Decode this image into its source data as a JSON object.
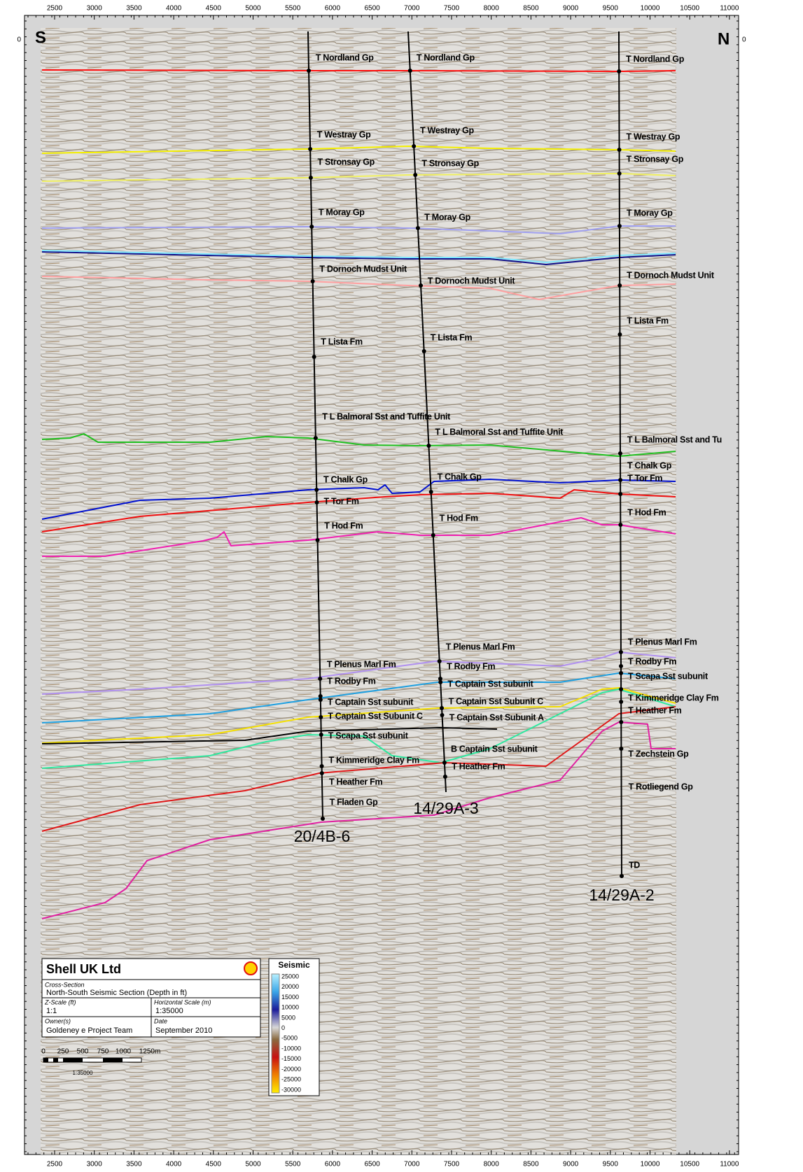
{
  "axis": {
    "ticks": [
      2500,
      3000,
      3500,
      4000,
      4500,
      5000,
      5500,
      6000,
      6500,
      7000,
      7500,
      8000,
      8500,
      9000,
      9500,
      10000,
      10500,
      11000
    ],
    "left": "0",
    "right": "0"
  },
  "header": {
    "south": "S",
    "north": "N"
  },
  "wells": [
    {
      "name": "20/4B-6",
      "tops": [
        "T Nordland Gp",
        "T Westray Gp",
        "T Stronsay Gp",
        "T Moray Gp",
        "T Dornoch Mudst Unit",
        "T Lista Fm",
        "T L Balmoral Sst and Tuffite Unit",
        "T Chalk Gp",
        "T Tor Fm",
        "T Hod Fm",
        "T Plenus Marl Fm",
        "T Rodby Fm",
        "T Captain Sst subunit",
        "T Captain Sst Subunit C",
        "T Scapa Sst subunit",
        "T Kimmeridge Clay Fm",
        "T Heather Fm",
        "T Fladen Gp"
      ]
    },
    {
      "name": "14/29A-3",
      "tops": [
        "T Nordland Gp",
        "T Westray Gp",
        "T Stronsay Gp",
        "T Moray Gp",
        "T Dornoch Mudst Unit",
        "T Lista Fm",
        "T L Balmoral Sst and Tuffite Unit",
        "T Chalk Gp",
        "T Hod Fm",
        "T Plenus Marl Fm",
        "T Rodby Fm",
        "T Captain Sst subunit",
        "T Captain Sst Subunit C",
        "T Captain Sst Subunit A",
        "B Captain Sst subunit",
        "T Heather Fm"
      ]
    },
    {
      "name": "14/29A-2",
      "tops": [
        "T Nordland Gp",
        "T Westray Gp",
        "T Stronsay Gp",
        "T Moray Gp",
        "T Dornoch Mudst Unit",
        "T Lista Fm",
        "T L Balmoral Sst and Tu",
        "T Chalk Gp",
        "T Tor Fm",
        "T Hod Fm",
        "T Plenus Marl Fm",
        "T Rodby Fm",
        "T Scapa Sst subunit",
        "T Kimmeridge Clay Fm",
        "T Heather Fm",
        "T Zechstein Gp",
        "T Rotliegend Gp",
        "TD"
      ]
    }
  ],
  "title_block": {
    "company": "Shell UK Ltd",
    "section_label": "Cross-Section",
    "section": "North-South Seismic Section (Depth in ft)",
    "z_scale_label": "Z-Scale (ft)",
    "z_scale": "1:1",
    "h_scale_label": "Horizontal Scale (m)",
    "h_scale": "1:35000",
    "owner_label": "Owner(s)",
    "owner": "Goldeney e Project Team",
    "date_label": "Date",
    "date": "September 2010"
  },
  "legend": {
    "title": "Seismic",
    "labels": [
      25000,
      20000,
      15000,
      10000,
      5000,
      0,
      -5000,
      -10000,
      -15000,
      -20000,
      -25000,
      -30000
    ]
  },
  "scale_bar": {
    "labels": [
      "0",
      "250",
      "500",
      "750",
      "1000",
      "1250m"
    ],
    "ratio": "1:35000"
  }
}
